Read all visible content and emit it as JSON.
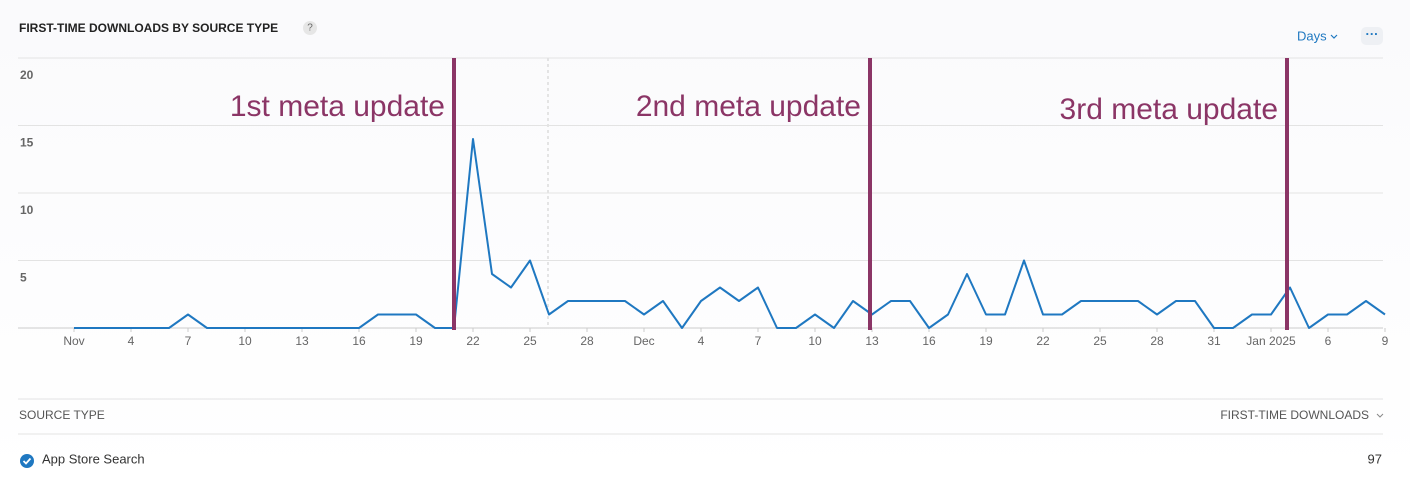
{
  "header": {
    "title": "FIRST-TIME DOWNLOADS BY SOURCE TYPE",
    "help": "?",
    "period": "Days",
    "menu": "···"
  },
  "chart_data": {
    "type": "line",
    "categories": [
      "Nov",
      null,
      null,
      "4",
      null,
      null,
      "7",
      null,
      null,
      "10",
      null,
      null,
      "13",
      null,
      null,
      "16",
      null,
      null,
      "19",
      null,
      null,
      "22",
      null,
      null,
      "25",
      null,
      null,
      "28",
      null,
      null,
      "Dec",
      null,
      null,
      "4",
      null,
      null,
      "7",
      null,
      null,
      "10",
      null,
      null,
      "13",
      null,
      null,
      "16",
      null,
      null,
      "19",
      null,
      null,
      "22",
      null,
      null,
      "25",
      null,
      null,
      "28",
      null,
      null,
      "31",
      null,
      null,
      "Jan 2025",
      null,
      null,
      "6",
      null,
      null,
      "9"
    ],
    "series": [
      {
        "name": "App Store Search",
        "color": "#1f78c1",
        "values": [
          0,
          0,
          0,
          0,
          0,
          0,
          1,
          0,
          0,
          0,
          0,
          0,
          0,
          0,
          0,
          0,
          1,
          1,
          1,
          0,
          0,
          14,
          4,
          3,
          5,
          1,
          2,
          2,
          2,
          2,
          1,
          2,
          0,
          2,
          3,
          2,
          3,
          0,
          0,
          1,
          0,
          2,
          1,
          2,
          2,
          0,
          1,
          4,
          1,
          1,
          5,
          1,
          1,
          2,
          2,
          2,
          2,
          1,
          2,
          2,
          0,
          0,
          1,
          1,
          3,
          0,
          1,
          1,
          2,
          1
        ]
      }
    ],
    "ylim": [
      0,
      20
    ],
    "yticks": [
      5,
      10,
      15,
      20
    ],
    "grid": true,
    "annotations": [
      {
        "text": "1st meta update"
      },
      {
        "text": "2nd meta update"
      },
      {
        "text": "3rd meta update"
      }
    ]
  },
  "table": {
    "columns": [
      "SOURCE TYPE",
      "FIRST-TIME DOWNLOADS"
    ],
    "rows": [
      [
        "App Store Search",
        "97"
      ]
    ]
  }
}
